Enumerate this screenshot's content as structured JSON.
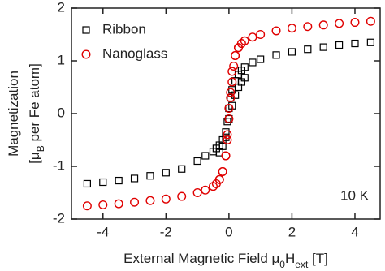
{
  "chart_data": {
    "type": "scatter",
    "ylabel_lines": [
      [
        "Magnetization"
      ],
      [
        "[μ",
        "B",
        " per Fe atom]"
      ]
    ],
    "xlabel_parts": [
      "External Magnetic Field μ",
      "0",
      "H",
      "ext",
      " [T]"
    ],
    "annotation": "10 K",
    "xlim": [
      -5,
      4.8
    ],
    "xticks": [
      -4,
      -2,
      0,
      2,
      4
    ],
    "ylim": [
      -2,
      2
    ],
    "yticks": [
      -2,
      -1,
      0,
      1,
      2
    ],
    "legend": "upper left",
    "series": [
      {
        "name": "Ribbon",
        "color": "#000000",
        "marker": "square",
        "x": [
          4.5,
          4,
          3.5,
          3,
          2.5,
          2,
          1.5,
          1,
          0.75,
          0.5,
          0.4,
          0.3,
          0.2,
          0.1,
          0.05,
          0,
          -0.05,
          -0.1,
          -0.2,
          -0.3,
          -0.4,
          -0.5,
          -0.75,
          -1,
          -1.5,
          -2,
          -2.5,
          -3,
          -3.5,
          -4,
          -4.5,
          -0.3,
          -0.2,
          -0.1,
          0,
          0.1,
          0.2,
          0.3,
          0.4,
          0.5
        ],
        "values": [
          1.35,
          1.33,
          1.3,
          1.26,
          1.22,
          1.17,
          1.11,
          1.03,
          0.97,
          0.88,
          0.82,
          0.74,
          0.62,
          0.45,
          0.3,
          0.1,
          -0.15,
          -0.35,
          -0.5,
          -0.6,
          -0.66,
          -0.72,
          -0.8,
          -0.9,
          -1.05,
          -1.12,
          -1.18,
          -1.23,
          -1.27,
          -1.3,
          -1.33,
          -0.74,
          -0.62,
          -0.45,
          -0.1,
          0.15,
          0.35,
          0.5,
          0.6,
          0.68
        ]
      },
      {
        "name": "Nanoglass",
        "color": "#e00000",
        "marker": "circle",
        "x": [
          4.5,
          4,
          3.5,
          3,
          2.5,
          2,
          1.5,
          1,
          0.75,
          0.5,
          0.4,
          0.3,
          0.2,
          0.15,
          0.1,
          0.05,
          0,
          -0.05,
          -0.1,
          -0.2,
          -0.3,
          -0.4,
          -0.5,
          -0.75,
          -1,
          -1.5,
          -2,
          -2.5,
          -3,
          -3.5,
          -4,
          -4.5,
          -0.3,
          -0.2,
          -0.1,
          -0.05,
          0,
          0.05,
          0.1,
          0.2,
          0.3
        ],
        "values": [
          1.75,
          1.73,
          1.71,
          1.68,
          1.65,
          1.62,
          1.57,
          1.5,
          1.45,
          1.38,
          1.33,
          1.25,
          1.1,
          0.9,
          0.6,
          0.3,
          0.1,
          -0.4,
          -0.8,
          -1.1,
          -1.25,
          -1.33,
          -1.38,
          -1.45,
          -1.5,
          -1.57,
          -1.62,
          -1.65,
          -1.68,
          -1.71,
          -1.73,
          -1.75,
          -1.25,
          -1.1,
          -0.8,
          -0.5,
          -0.1,
          0.4,
          0.8,
          1.1,
          1.25
        ]
      }
    ]
  }
}
